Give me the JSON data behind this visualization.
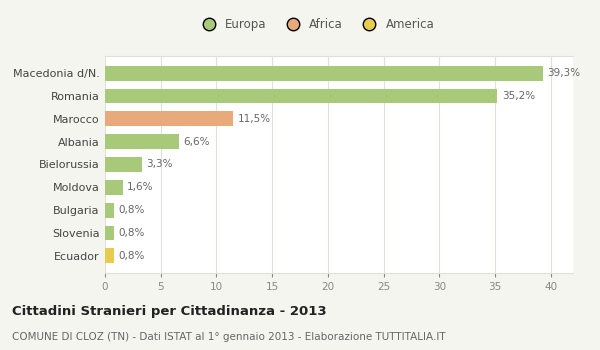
{
  "categories": [
    "Macedonia d/N.",
    "Romania",
    "Marocco",
    "Albania",
    "Bielorussia",
    "Moldova",
    "Bulgaria",
    "Slovenia",
    "Ecuador"
  ],
  "values": [
    39.3,
    35.2,
    11.5,
    6.6,
    3.3,
    1.6,
    0.8,
    0.8,
    0.8
  ],
  "labels": [
    "39,3%",
    "35,2%",
    "11,5%",
    "6,6%",
    "3,3%",
    "1,6%",
    "0,8%",
    "0,8%",
    "0,8%"
  ],
  "continents": [
    "Europa",
    "Europa",
    "Africa",
    "Europa",
    "Europa",
    "Europa",
    "Europa",
    "Europa",
    "America"
  ],
  "colors": {
    "Europa": "#a8c87a",
    "Africa": "#e8aa7a",
    "America": "#e8cc50"
  },
  "legend_order": [
    "Europa",
    "Africa",
    "America"
  ],
  "title": "Cittadini Stranieri per Cittadinanza - 2013",
  "subtitle": "COMUNE DI CLOZ (TN) - Dati ISTAT al 1° gennaio 2013 - Elaborazione TUTTITALIA.IT",
  "xlim": [
    0,
    42
  ],
  "xticks": [
    0,
    5,
    10,
    15,
    20,
    25,
    30,
    35,
    40
  ],
  "background_color": "#f5f5ef",
  "plot_background": "#ffffff",
  "grid_color": "#e0e0d8"
}
